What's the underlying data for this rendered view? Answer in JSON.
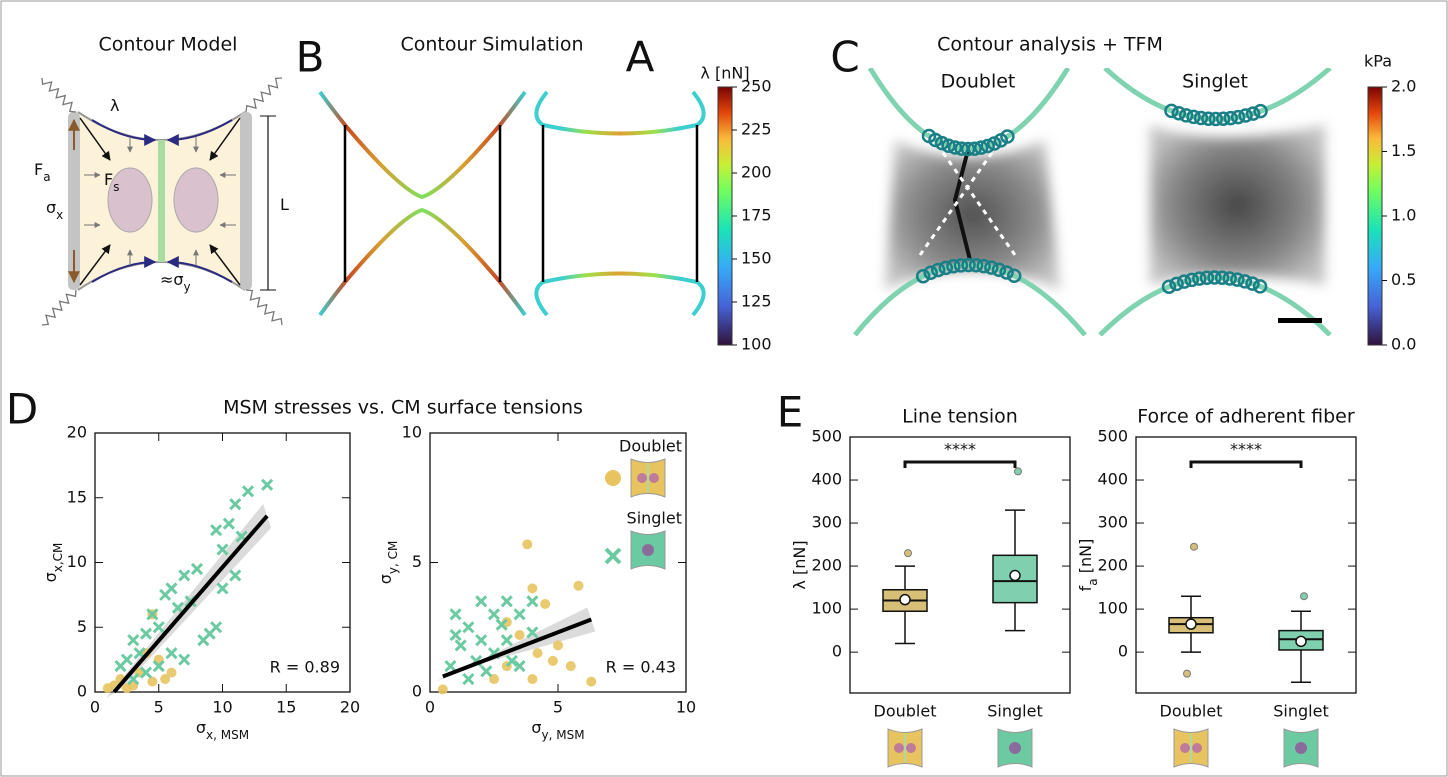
{
  "panel_labels": [
    "B",
    "A",
    "C",
    "D",
    "E"
  ],
  "contour_model": {
    "title": "Contour Model",
    "labels": {
      "lambda": [
        {
          "text": "λ"
        }
      ],
      "fa": [
        {
          "text": "F"
        },
        {
          "sub": "a"
        }
      ],
      "fs": [
        {
          "text": "F"
        },
        {
          "sub": "s"
        }
      ],
      "sx": [
        {
          "text": "σ"
        },
        {
          "sub": "x"
        }
      ],
      "sy": [
        {
          "text": "≈σ"
        },
        {
          "sub": "y"
        }
      ],
      "L": [
        {
          "text": "L"
        }
      ]
    }
  },
  "contour_simulation": {
    "title": "Contour Simulation"
  },
  "contour_tfm": {
    "title": "Contour analysis + TFM",
    "doublet": "Doublet",
    "singlet": "Singlet"
  },
  "colorbars": [
    {
      "label": "λ [nN]",
      "lim": [
        100,
        250
      ],
      "ticks": [
        100,
        125,
        150,
        175,
        200,
        225,
        250
      ]
    },
    {
      "label": "kPa",
      "lim": [
        0,
        2
      ],
      "ticks": [
        {
          "value": 0,
          "label": "0.0"
        },
        {
          "value": 0.5,
          "label": "0.5"
        },
        {
          "value": 1,
          "label": "1.0"
        },
        {
          "value": 1.5,
          "label": "1.5"
        },
        {
          "value": 2,
          "label": "2.0"
        }
      ]
    }
  ],
  "msm_title": "MSM stresses vs. CM surface tensions",
  "chart_data": [
    {
      "type": "scatter",
      "xlabel": [
        {
          "text": "σ"
        },
        {
          "sub": "x, MSM"
        }
      ],
      "ylabel": [
        {
          "text": "σ"
        },
        {
          "sub": "x,CM"
        }
      ],
      "xlim": [
        0,
        20
      ],
      "ylim": [
        0,
        20
      ],
      "xticks": [
        0,
        5,
        10,
        15,
        20
      ],
      "yticks": [
        0,
        5,
        10,
        15,
        20
      ],
      "legend": false,
      "annotation": "R = 0.89",
      "series": [
        {
          "color": "#e8c460",
          "marker": "circle",
          "x": [
            4.5,
            2,
            3,
            1.5,
            4,
            5,
            3.5,
            5.5,
            2.5,
            6,
            4.5,
            1
          ],
          "values": [
            6,
            1,
            0.5,
            0.5,
            3,
            2.5,
            1.5,
            1,
            0.3,
            1.5,
            0.8,
            0.3
          ]
        },
        {
          "color": "#6ccaa2",
          "marker": "x",
          "x": [
            13.5,
            11,
            12,
            11.5,
            10,
            9.5,
            10.5,
            8,
            7,
            6,
            5.5,
            4.5,
            5,
            6.5,
            7.5,
            3,
            4,
            3.5,
            2.5,
            2,
            6,
            7,
            8.5,
            9.5,
            9,
            5,
            4,
            3,
            10,
            11
          ],
          "values": [
            16,
            14.5,
            15.5,
            12,
            11,
            12.5,
            13,
            9.5,
            9,
            8,
            7.5,
            6,
            5,
            6.5,
            7,
            4,
            4.5,
            3,
            2.5,
            2,
            3,
            2.5,
            4,
            5,
            4.5,
            2,
            1.5,
            1,
            8,
            9
          ]
        }
      ],
      "fit": {
        "x": [
          1.5,
          13.5
        ],
        "values": [
          0,
          13.6
        ]
      }
    },
    {
      "type": "scatter",
      "xlabel": [
        {
          "text": "σ"
        },
        {
          "sub": "y, MSM"
        }
      ],
      "ylabel": [
        {
          "text": "σ"
        },
        {
          "sub": "y, CM"
        }
      ],
      "xlim": [
        0,
        10
      ],
      "ylim": [
        0,
        10
      ],
      "xticks": [
        0,
        5,
        10
      ],
      "yticks": [
        0,
        5,
        10
      ],
      "legend": "upper right",
      "annotation": "R = 0.43",
      "series": [
        {
          "name": "Doublet",
          "color": "#e8c460",
          "marker": "circle",
          "x": [
            3.8,
            5.8,
            4.5,
            4,
            3,
            3.5,
            4.2,
            5,
            4.8,
            2.5,
            0.5,
            6.3,
            5.5,
            3,
            4
          ],
          "values": [
            5.7,
            4.1,
            3.4,
            4,
            2.7,
            2.2,
            1.5,
            1.8,
            1.2,
            0.5,
            0.1,
            0.4,
            1,
            1,
            0.5
          ]
        },
        {
          "name": "Singlet",
          "color": "#6ccaa2",
          "marker": "x",
          "x": [
            1,
            1.5,
            2,
            2.5,
            3,
            3.5,
            4,
            1.2,
            2,
            3,
            2.5,
            0.8,
            1.5,
            2.2,
            3.5,
            4,
            1,
            2.8,
            3.2,
            1.8
          ],
          "values": [
            3,
            2.5,
            3.5,
            3,
            3.5,
            3,
            3.5,
            1.8,
            2,
            2,
            1.5,
            1,
            0.5,
            0.8,
            1,
            2.3,
            2.2,
            2.6,
            1.2,
            1.2
          ]
        }
      ],
      "fit": {
        "x": [
          0.5,
          6.3
        ],
        "values": [
          0.6,
          2.8
        ]
      }
    },
    {
      "type": "box",
      "title": "Line tension",
      "ylabel": [
        {
          "text": "λ [nN]"
        }
      ],
      "ylim": [
        -95,
        500
      ],
      "yticks": [
        0,
        100,
        200,
        300,
        400,
        500
      ],
      "categories": [
        "Doublet",
        "Singlet"
      ],
      "colors": [
        "#d8bf78",
        "#80cfae"
      ],
      "significance": "****",
      "boxes": [
        {
          "whislo": 20,
          "q1": 95,
          "med": 120,
          "q3": 145,
          "whishi": 200,
          "mean": 122,
          "outliers": [
            230
          ]
        },
        {
          "whislo": 50,
          "q1": 115,
          "med": 165,
          "q3": 225,
          "whishi": 330,
          "mean": 178,
          "outliers": [
            420
          ]
        }
      ]
    },
    {
      "type": "box",
      "title": "Force of adherent fiber",
      "ylabel": [
        {
          "text": "f"
        },
        {
          "sub": "a"
        },
        {
          "text": " [nN]"
        }
      ],
      "ylim": [
        -95,
        500
      ],
      "yticks": [
        0,
        100,
        200,
        300,
        400,
        500
      ],
      "categories": [
        "Doublet",
        "Singlet"
      ],
      "colors": [
        "#d8bf78",
        "#80cfae"
      ],
      "significance": "****",
      "boxes": [
        {
          "whislo": 0,
          "q1": 45,
          "med": 65,
          "q3": 80,
          "whishi": 130,
          "mean": 65,
          "outliers": [
            245,
            -50
          ]
        },
        {
          "whislo": -70,
          "q1": 5,
          "med": 30,
          "q3": 50,
          "whishi": 95,
          "mean": 25,
          "outliers": [
            130
          ]
        }
      ]
    }
  ]
}
